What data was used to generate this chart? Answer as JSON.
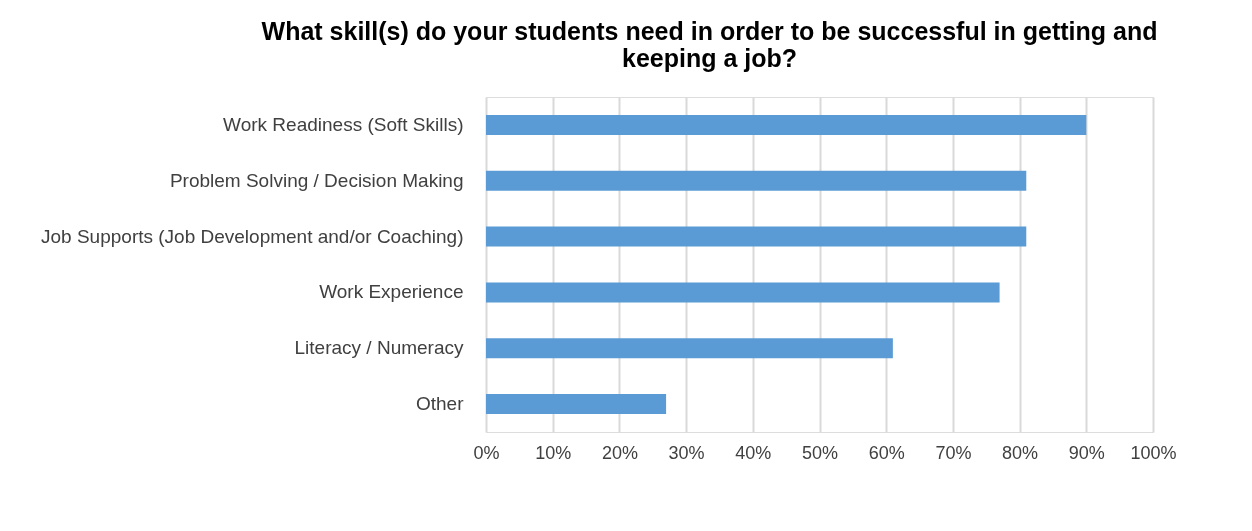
{
  "chart_data": {
    "type": "bar",
    "orientation": "horizontal",
    "title": "What skill(s) do your students need in order to be successful in getting and keeping a job?",
    "categories": [
      "Work Readiness (Soft Skills)",
      "Problem Solving / Decision Making",
      "Job Supports (Job Development and/or Coaching)",
      "Work Experience",
      "Literacy / Numeracy",
      "Other"
    ],
    "values": [
      90,
      81,
      81,
      77,
      61,
      27
    ],
    "color": "#5b9bd5",
    "xlim": [
      0,
      100
    ],
    "xticks": [
      {
        "value": 0,
        "label": "0%"
      },
      {
        "value": 10,
        "label": "10%"
      },
      {
        "value": 20,
        "label": "20%"
      },
      {
        "value": 30,
        "label": "30%"
      },
      {
        "value": 40,
        "label": "40%"
      },
      {
        "value": 50,
        "label": "50%"
      },
      {
        "value": 60,
        "label": "60%"
      },
      {
        "value": 70,
        "label": "70%"
      },
      {
        "value": 80,
        "label": "80%"
      },
      {
        "value": 90,
        "label": "90%"
      },
      {
        "value": 100,
        "label": "100%"
      }
    ],
    "grid": "x"
  }
}
